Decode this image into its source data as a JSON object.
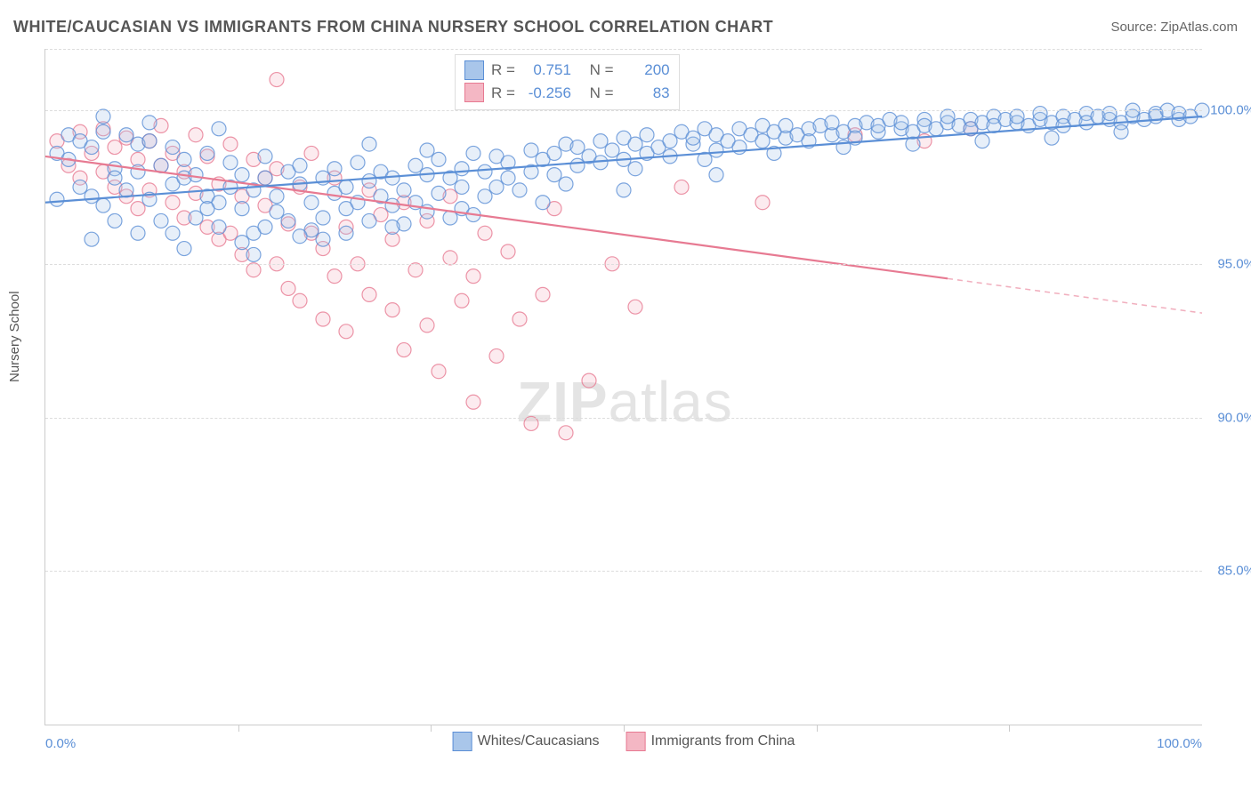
{
  "title": "WHITE/CAUCASIAN VS IMMIGRANTS FROM CHINA NURSERY SCHOOL CORRELATION CHART",
  "source_label": "Source: ZipAtlas.com",
  "ylabel": "Nursery School",
  "watermark_bold": "ZIP",
  "watermark_rest": "atlas",
  "chart": {
    "type": "scatter",
    "xlim": [
      0,
      100
    ],
    "ylim": [
      80,
      102
    ],
    "xtick_labels": [
      "0.0%",
      "100.0%"
    ],
    "xtick_positions": [
      0,
      100
    ],
    "xtick_minor": [
      16.67,
      33.33,
      50,
      66.67,
      83.33
    ],
    "ytick_labels": [
      "85.0%",
      "90.0%",
      "95.0%",
      "100.0%"
    ],
    "ytick_positions": [
      85,
      90,
      95,
      100
    ],
    "grid_color": "#dddddd",
    "axis_color": "#cccccc",
    "background_color": "#ffffff",
    "marker_radius": 8,
    "marker_fill_opacity": 0.28,
    "marker_stroke_width": 1.2,
    "line_width": 2.2,
    "series": [
      {
        "id": "whites",
        "label": "Whites/Caucasians",
        "color": "#5b8fd6",
        "fill": "#a9c6ea",
        "R": "0.751",
        "N": "200",
        "trend": {
          "x0": 0,
          "y0": 97.0,
          "x1": 100,
          "y1": 99.8,
          "solid_until": 100
        },
        "points": [
          [
            1,
            98.6
          ],
          [
            2,
            99.2
          ],
          [
            2,
            98.4
          ],
          [
            3,
            97.5
          ],
          [
            3,
            99.0
          ],
          [
            4,
            98.8
          ],
          [
            4,
            97.2
          ],
          [
            5,
            99.3
          ],
          [
            5,
            96.9
          ],
          [
            6,
            98.1
          ],
          [
            6,
            97.8
          ],
          [
            7,
            99.2
          ],
          [
            7,
            97.4
          ],
          [
            8,
            98.0
          ],
          [
            8,
            98.9
          ],
          [
            9,
            97.1
          ],
          [
            9,
            99.0
          ],
          [
            10,
            96.4
          ],
          [
            10,
            98.2
          ],
          [
            11,
            97.6
          ],
          [
            11,
            98.8
          ],
          [
            12,
            97.8
          ],
          [
            12,
            98.4
          ],
          [
            13,
            96.5
          ],
          [
            13,
            97.9
          ],
          [
            14,
            97.2
          ],
          [
            14,
            98.6
          ],
          [
            15,
            97.0
          ],
          [
            15,
            96.2
          ],
          [
            16,
            97.5
          ],
          [
            16,
            98.3
          ],
          [
            17,
            96.8
          ],
          [
            17,
            97.9
          ],
          [
            18,
            97.4
          ],
          [
            18,
            96.0
          ],
          [
            19,
            97.8
          ],
          [
            19,
            98.5
          ],
          [
            20,
            96.7
          ],
          [
            20,
            97.2
          ],
          [
            21,
            98.0
          ],
          [
            21,
            96.4
          ],
          [
            22,
            97.6
          ],
          [
            22,
            98.2
          ],
          [
            23,
            96.1
          ],
          [
            23,
            97.0
          ],
          [
            24,
            97.8
          ],
          [
            24,
            96.5
          ],
          [
            25,
            97.3
          ],
          [
            25,
            98.1
          ],
          [
            26,
            96.8
          ],
          [
            26,
            97.5
          ],
          [
            27,
            97.0
          ],
          [
            27,
            98.3
          ],
          [
            28,
            96.4
          ],
          [
            28,
            97.7
          ],
          [
            29,
            98.0
          ],
          [
            29,
            97.2
          ],
          [
            30,
            96.9
          ],
          [
            30,
            97.8
          ],
          [
            31,
            97.4
          ],
          [
            32,
            98.2
          ],
          [
            32,
            97.0
          ],
          [
            33,
            97.9
          ],
          [
            33,
            96.7
          ],
          [
            34,
            98.4
          ],
          [
            34,
            97.3
          ],
          [
            35,
            96.5
          ],
          [
            35,
            97.8
          ],
          [
            36,
            98.1
          ],
          [
            36,
            97.5
          ],
          [
            37,
            98.6
          ],
          [
            38,
            97.2
          ],
          [
            38,
            98.0
          ],
          [
            39,
            98.5
          ],
          [
            40,
            97.8
          ],
          [
            40,
            98.3
          ],
          [
            41,
            97.4
          ],
          [
            42,
            98.7
          ],
          [
            42,
            98.0
          ],
          [
            43,
            98.4
          ],
          [
            44,
            97.9
          ],
          [
            44,
            98.6
          ],
          [
            45,
            98.9
          ],
          [
            46,
            98.2
          ],
          [
            46,
            98.8
          ],
          [
            47,
            98.5
          ],
          [
            48,
            99.0
          ],
          [
            48,
            98.3
          ],
          [
            49,
            98.7
          ],
          [
            50,
            99.1
          ],
          [
            50,
            98.4
          ],
          [
            51,
            98.9
          ],
          [
            52,
            98.6
          ],
          [
            52,
            99.2
          ],
          [
            53,
            98.8
          ],
          [
            54,
            99.0
          ],
          [
            54,
            98.5
          ],
          [
            55,
            99.3
          ],
          [
            56,
            98.9
          ],
          [
            56,
            99.1
          ],
          [
            57,
            99.4
          ],
          [
            58,
            98.7
          ],
          [
            58,
            99.2
          ],
          [
            59,
            99.0
          ],
          [
            60,
            99.4
          ],
          [
            60,
            98.8
          ],
          [
            61,
            99.2
          ],
          [
            62,
            99.5
          ],
          [
            62,
            99.0
          ],
          [
            63,
            99.3
          ],
          [
            64,
            99.1
          ],
          [
            64,
            99.5
          ],
          [
            65,
            99.2
          ],
          [
            66,
            99.4
          ],
          [
            66,
            99.0
          ],
          [
            67,
            99.5
          ],
          [
            68,
            99.2
          ],
          [
            68,
            99.6
          ],
          [
            69,
            99.3
          ],
          [
            70,
            99.5
          ],
          [
            70,
            99.1
          ],
          [
            71,
            99.6
          ],
          [
            72,
            99.3
          ],
          [
            72,
            99.5
          ],
          [
            73,
            99.7
          ],
          [
            74,
            99.4
          ],
          [
            74,
            99.6
          ],
          [
            75,
            99.3
          ],
          [
            76,
            99.7
          ],
          [
            76,
            99.5
          ],
          [
            77,
            99.4
          ],
          [
            78,
            99.6
          ],
          [
            78,
            99.8
          ],
          [
            79,
            99.5
          ],
          [
            80,
            99.7
          ],
          [
            80,
            99.4
          ],
          [
            81,
            99.6
          ],
          [
            82,
            99.8
          ],
          [
            82,
            99.5
          ],
          [
            83,
            99.7
          ],
          [
            84,
            99.6
          ],
          [
            84,
            99.8
          ],
          [
            85,
            99.5
          ],
          [
            86,
            99.7
          ],
          [
            86,
            99.9
          ],
          [
            87,
            99.6
          ],
          [
            88,
            99.8
          ],
          [
            88,
            99.5
          ],
          [
            89,
            99.7
          ],
          [
            90,
            99.9
          ],
          [
            90,
            99.6
          ],
          [
            91,
            99.8
          ],
          [
            92,
            99.7
          ],
          [
            92,
            99.9
          ],
          [
            93,
            99.6
          ],
          [
            94,
            99.8
          ],
          [
            94,
            100.0
          ],
          [
            95,
            99.7
          ],
          [
            96,
            99.9
          ],
          [
            96,
            99.8
          ],
          [
            97,
            100.0
          ],
          [
            98,
            99.7
          ],
          [
            98,
            99.9
          ],
          [
            99,
            99.8
          ],
          [
            100,
            100.0
          ],
          [
            4,
            95.8
          ],
          [
            8,
            96.0
          ],
          [
            12,
            95.5
          ],
          [
            17,
            95.7
          ],
          [
            22,
            95.9
          ],
          [
            14,
            96.8
          ],
          [
            19,
            96.2
          ],
          [
            26,
            96.0
          ],
          [
            31,
            96.3
          ],
          [
            36,
            96.8
          ],
          [
            28,
            98.9
          ],
          [
            33,
            98.7
          ],
          [
            39,
            97.5
          ],
          [
            45,
            97.6
          ],
          [
            51,
            98.1
          ],
          [
            57,
            98.4
          ],
          [
            63,
            98.6
          ],
          [
            69,
            98.8
          ],
          [
            75,
            98.9
          ],
          [
            81,
            99.0
          ],
          [
            87,
            99.1
          ],
          [
            93,
            99.3
          ],
          [
            5,
            99.8
          ],
          [
            9,
            99.6
          ],
          [
            15,
            99.4
          ],
          [
            1,
            97.1
          ],
          [
            6,
            96.4
          ],
          [
            11,
            96.0
          ],
          [
            18,
            95.3
          ],
          [
            24,
            95.8
          ],
          [
            30,
            96.2
          ],
          [
            37,
            96.6
          ],
          [
            43,
            97.0
          ],
          [
            50,
            97.4
          ],
          [
            58,
            97.9
          ]
        ]
      },
      {
        "id": "china",
        "label": "Immigrants from China",
        "color": "#e77a92",
        "fill": "#f4b7c4",
        "R": "-0.256",
        "N": "83",
        "trend": {
          "x0": 0,
          "y0": 98.5,
          "x1": 100,
          "y1": 93.4,
          "solid_until": 78
        },
        "points": [
          [
            1,
            99.0
          ],
          [
            2,
            98.2
          ],
          [
            3,
            99.3
          ],
          [
            3,
            97.8
          ],
          [
            4,
            98.6
          ],
          [
            5,
            98.0
          ],
          [
            5,
            99.4
          ],
          [
            6,
            97.5
          ],
          [
            6,
            98.8
          ],
          [
            7,
            99.1
          ],
          [
            7,
            97.2
          ],
          [
            8,
            98.4
          ],
          [
            8,
            96.8
          ],
          [
            9,
            99.0
          ],
          [
            9,
            97.4
          ],
          [
            10,
            98.2
          ],
          [
            10,
            99.5
          ],
          [
            11,
            97.0
          ],
          [
            11,
            98.6
          ],
          [
            12,
            96.5
          ],
          [
            12,
            98.0
          ],
          [
            13,
            99.2
          ],
          [
            13,
            97.3
          ],
          [
            14,
            96.2
          ],
          [
            14,
            98.5
          ],
          [
            15,
            97.6
          ],
          [
            15,
            95.8
          ],
          [
            16,
            98.9
          ],
          [
            16,
            96.0
          ],
          [
            17,
            97.2
          ],
          [
            17,
            95.3
          ],
          [
            18,
            98.4
          ],
          [
            18,
            94.8
          ],
          [
            19,
            96.9
          ],
          [
            19,
            97.8
          ],
          [
            20,
            95.0
          ],
          [
            20,
            98.1
          ],
          [
            21,
            96.3
          ],
          [
            21,
            94.2
          ],
          [
            22,
            97.5
          ],
          [
            22,
            93.8
          ],
          [
            23,
            96.0
          ],
          [
            23,
            98.6
          ],
          [
            24,
            95.5
          ],
          [
            24,
            93.2
          ],
          [
            25,
            97.8
          ],
          [
            25,
            94.6
          ],
          [
            26,
            96.2
          ],
          [
            26,
            92.8
          ],
          [
            27,
            95.0
          ],
          [
            28,
            97.4
          ],
          [
            28,
            94.0
          ],
          [
            29,
            96.6
          ],
          [
            30,
            93.5
          ],
          [
            30,
            95.8
          ],
          [
            31,
            97.0
          ],
          [
            31,
            92.2
          ],
          [
            32,
            94.8
          ],
          [
            33,
            96.4
          ],
          [
            33,
            93.0
          ],
          [
            34,
            91.5
          ],
          [
            35,
            95.2
          ],
          [
            35,
            97.2
          ],
          [
            36,
            93.8
          ],
          [
            37,
            90.5
          ],
          [
            37,
            94.6
          ],
          [
            38,
            96.0
          ],
          [
            39,
            92.0
          ],
          [
            40,
            95.4
          ],
          [
            41,
            93.2
          ],
          [
            42,
            89.8
          ],
          [
            43,
            94.0
          ],
          [
            44,
            96.8
          ],
          [
            45,
            89.5
          ],
          [
            47,
            91.2
          ],
          [
            49,
            95.0
          ],
          [
            51,
            93.6
          ],
          [
            55,
            97.5
          ],
          [
            62,
            97.0
          ],
          [
            70,
            99.2
          ],
          [
            76,
            99.0
          ],
          [
            80,
            99.4
          ],
          [
            20,
            101.0
          ]
        ]
      }
    ],
    "legend": {
      "swatch_size": 20
    },
    "stats_box": {
      "R_label": "R =",
      "N_label": "N ="
    }
  },
  "label_fontsize": 15,
  "title_fontsize": 18
}
